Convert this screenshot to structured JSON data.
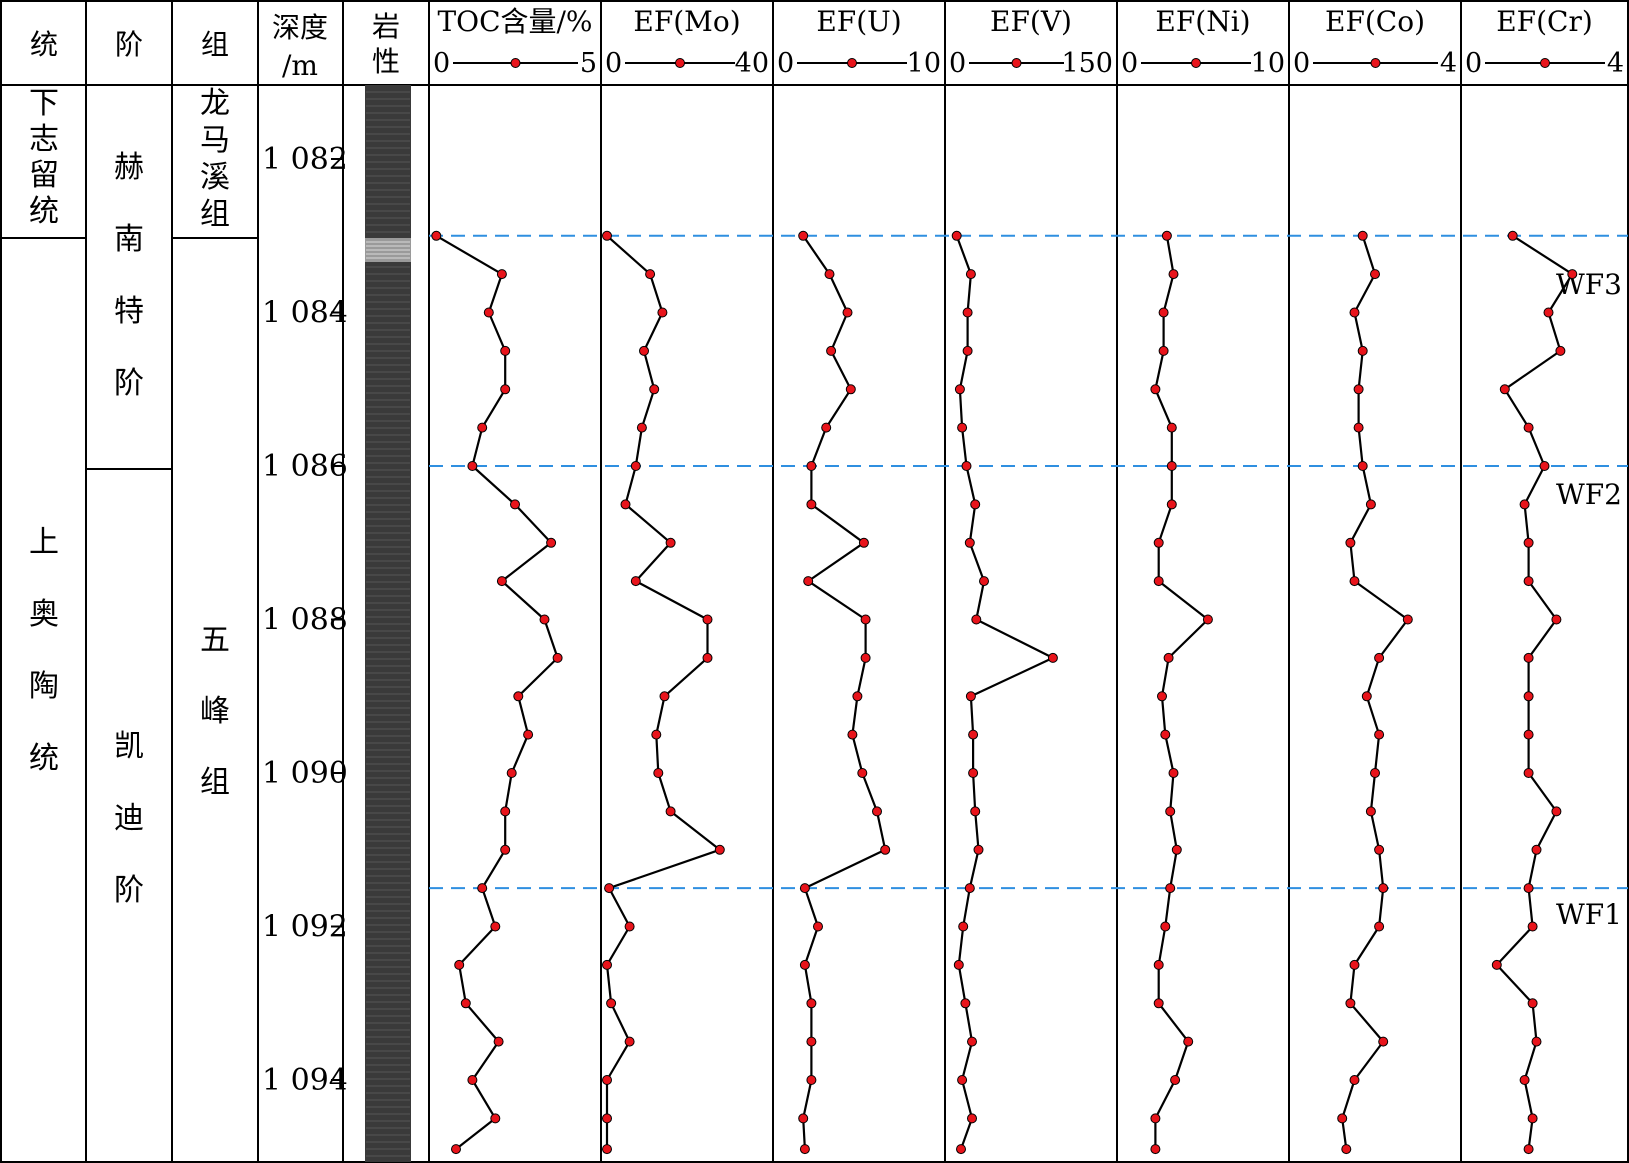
{
  "headers": {
    "series": "统",
    "stage": "阶",
    "formation": "组",
    "depth": [
      "深度",
      "/m"
    ],
    "lithology": [
      "岩",
      "性"
    ]
  },
  "stratigraphy": {
    "series_lower_silurian": [
      "下",
      "志",
      "留",
      "统"
    ],
    "series_upper_ordovician": [
      "上",
      "奥",
      "陶",
      "统"
    ],
    "stage_hirnantian": [
      "赫",
      "南",
      "特",
      "阶"
    ],
    "stage_katian": [
      "凯",
      "迪",
      "阶"
    ],
    "formation_longmaxi": [
      "龙",
      "马",
      "溪",
      "组"
    ],
    "formation_wufeng": [
      "五",
      "峰",
      "组"
    ]
  },
  "depth_ticks": [
    "1 082",
    "1 084",
    "1 086",
    "1 088",
    "1 090",
    "1 092",
    "1 094"
  ],
  "markers": [
    "WF3",
    "WF2",
    "WF1"
  ],
  "colors": {
    "point_fill": "#e8141b",
    "line": "#000000",
    "marker_line": "#2f8fe0",
    "lithology": "#3a3a3a"
  },
  "chart_data": {
    "type": "line",
    "y_axis": {
      "label": "深度/m",
      "range": [
        1081,
        1095
      ],
      "ticks": [
        1082,
        1084,
        1086,
        1088,
        1090,
        1092,
        1094
      ],
      "inverted": true
    },
    "depths": [
      1083.0,
      1083.5,
      1084.0,
      1084.5,
      1085.0,
      1085.5,
      1086.0,
      1086.5,
      1087.0,
      1087.5,
      1088.0,
      1088.5,
      1089.0,
      1089.5,
      1090.0,
      1090.5,
      1091.0,
      1091.5,
      1092.0,
      1092.5,
      1093.0,
      1093.5,
      1094.0,
      1094.5,
      1094.9
    ],
    "marker_depths": {
      "WF3": 1083.0,
      "WF2": 1086.0,
      "WF1": 1091.5
    },
    "series": [
      {
        "name": "TOC含量/%",
        "scale": [
          "0",
          "5"
        ],
        "xlim": [
          0,
          5
        ],
        "values": [
          0.1,
          2.1,
          1.7,
          2.2,
          2.2,
          1.5,
          1.2,
          2.5,
          3.6,
          2.1,
          3.4,
          3.8,
          2.6,
          2.9,
          2.4,
          2.2,
          2.2,
          1.5,
          1.9,
          0.8,
          1.0,
          2.0,
          1.2,
          1.9,
          0.7
        ]
      },
      {
        "name": "EF(Mo)",
        "scale": [
          "0",
          "40"
        ],
        "xlim": [
          0,
          40
        ],
        "values": [
          0.5,
          11,
          14,
          9.5,
          12,
          9,
          7.5,
          5,
          16,
          7.5,
          25,
          25,
          14.5,
          12.5,
          13,
          16,
          28,
          1,
          6,
          0.5,
          1.5,
          6,
          0.5,
          0.5,
          0.5
        ]
      },
      {
        "name": "EF(U)",
        "scale": [
          "0",
          "10"
        ],
        "xlim": [
          0,
          10
        ],
        "values": [
          1.6,
          3.2,
          4.3,
          3.3,
          4.5,
          3.0,
          2.1,
          2.1,
          5.3,
          1.9,
          5.4,
          5.4,
          4.9,
          4.6,
          5.2,
          6.1,
          6.6,
          1.7,
          2.5,
          1.7,
          2.1,
          2.1,
          2.1,
          1.6,
          1.7
        ]
      },
      {
        "name": "EF(V)",
        "scale": [
          "0",
          "150"
        ],
        "xlim": [
          0,
          150
        ],
        "values": [
          7,
          20,
          17,
          17,
          10,
          12,
          16,
          24,
          19,
          32,
          25,
          95,
          20,
          22,
          22,
          24,
          27,
          19,
          13,
          9,
          15,
          21,
          12,
          21,
          11
        ]
      },
      {
        "name": "EF(Ni)",
        "scale": [
          "0",
          "10"
        ],
        "xlim": [
          0,
          10
        ],
        "values": [
          2.8,
          3.2,
          2.6,
          2.6,
          2.1,
          3.1,
          3.1,
          3.1,
          2.3,
          2.3,
          5.3,
          2.9,
          2.5,
          2.7,
          3.2,
          3.0,
          3.4,
          3.0,
          2.7,
          2.3,
          2.3,
          4.1,
          3.3,
          2.1,
          2.1
        ]
      },
      {
        "name": "EF(Co)",
        "scale": [
          "0",
          "4"
        ],
        "xlim": [
          0,
          4
        ],
        "values": [
          1.7,
          2.0,
          1.5,
          1.7,
          1.6,
          1.6,
          1.7,
          1.9,
          1.4,
          1.5,
          2.8,
          2.1,
          1.8,
          2.1,
          2.0,
          1.9,
          2.1,
          2.2,
          2.1,
          1.5,
          1.4,
          2.2,
          1.5,
          1.2,
          1.3
        ]
      },
      {
        "name": "EF(Cr)",
        "scale": [
          "0",
          "4"
        ],
        "xlim": [
          0,
          4
        ],
        "values": [
          1.2,
          2.7,
          2.1,
          2.4,
          1.0,
          1.6,
          2.0,
          1.5,
          1.6,
          1.6,
          2.3,
          1.6,
          1.6,
          1.6,
          1.6,
          2.3,
          1.8,
          1.6,
          1.7,
          0.8,
          1.7,
          1.8,
          1.5,
          1.7,
          1.6
        ]
      }
    ]
  }
}
